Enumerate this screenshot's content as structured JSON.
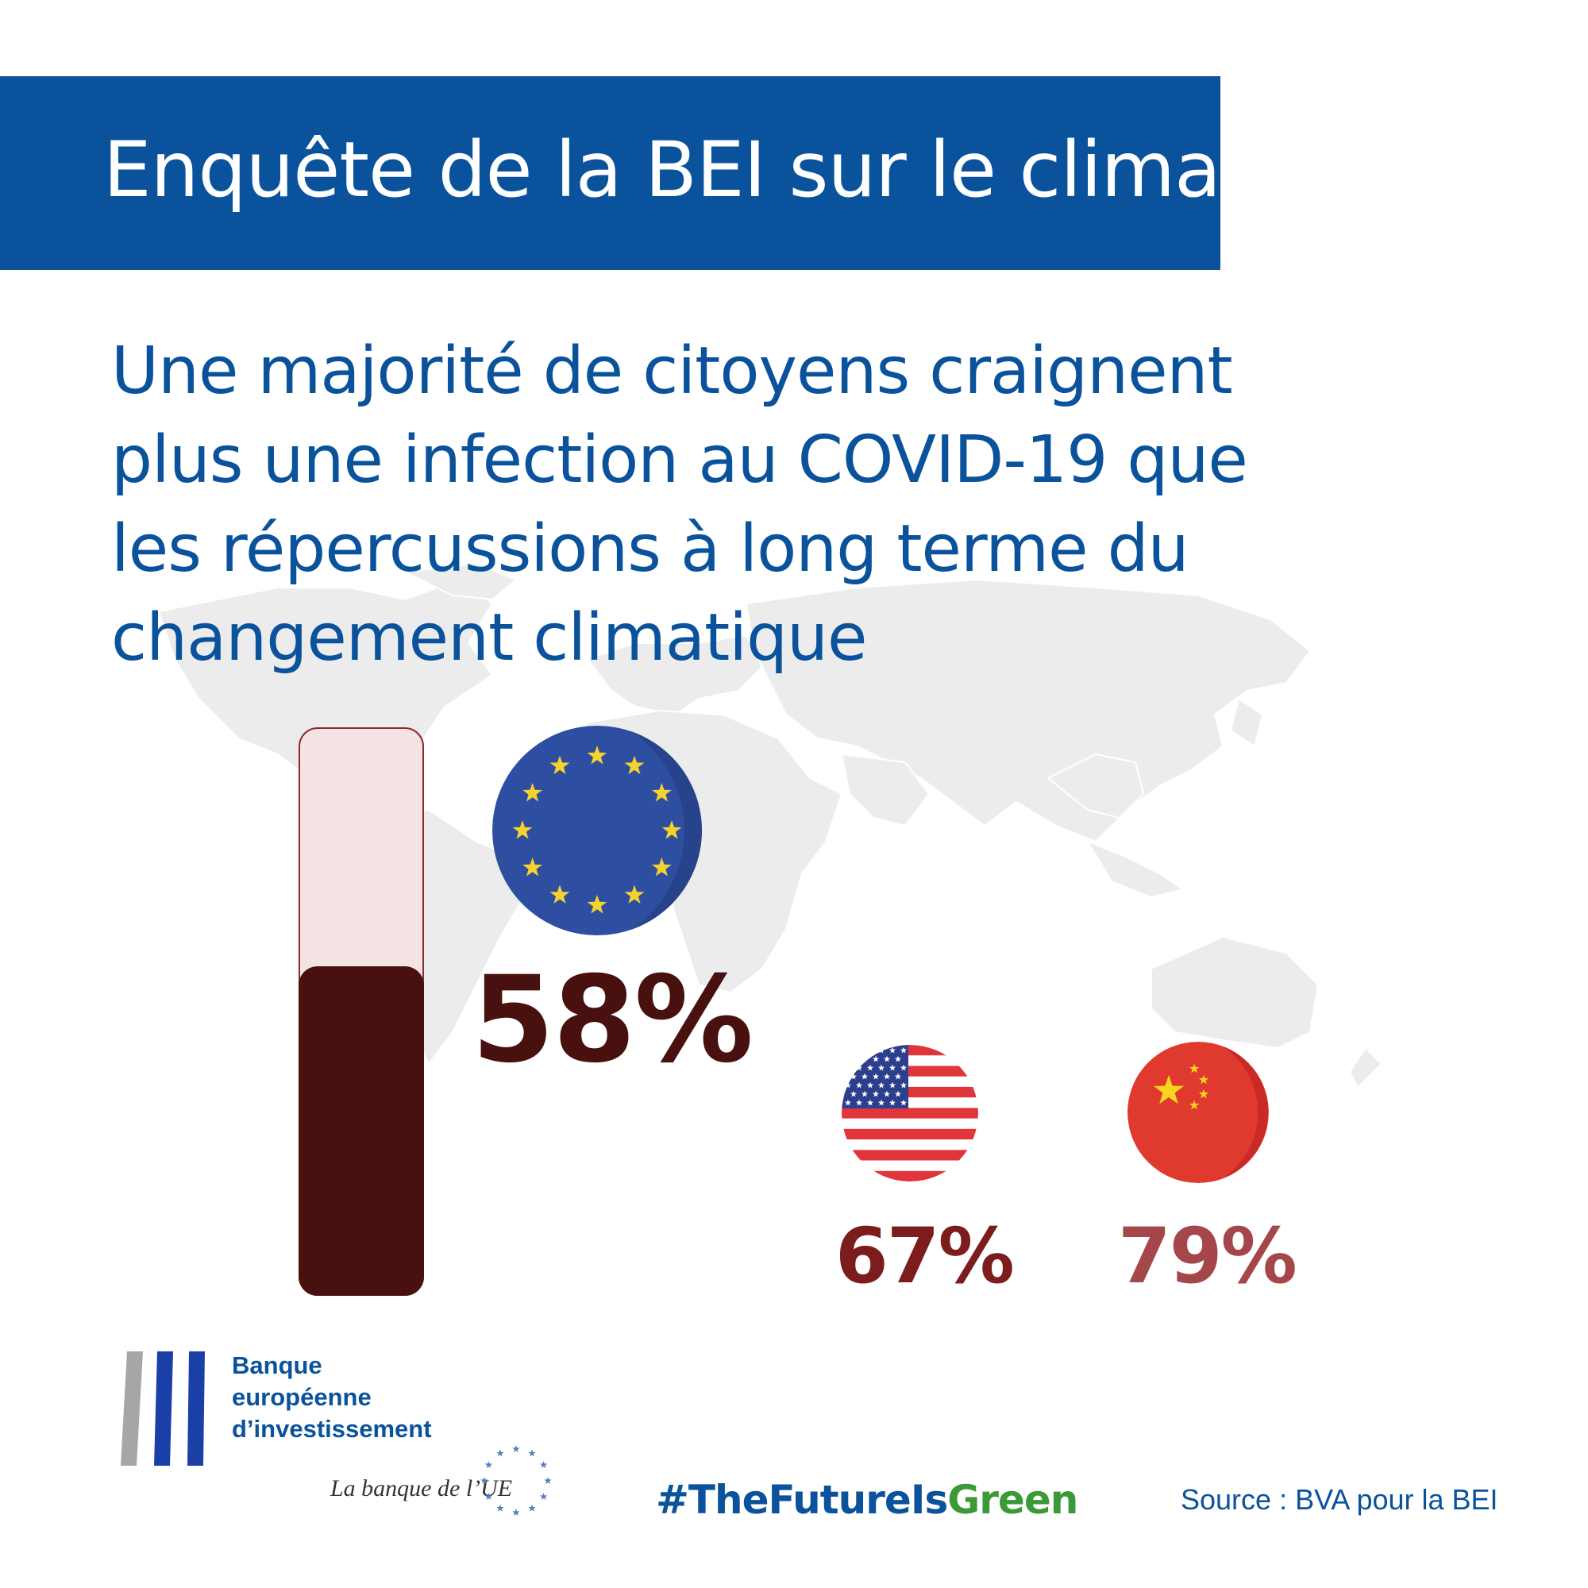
{
  "header": {
    "title": "Enquête de la BEI sur le climat"
  },
  "subtitle": {
    "lines": [
      "Une majorité de citoyens craignent",
      "plus une infection au COVID-19 que",
      "les répercussions à long terme du",
      "changement climatique"
    ]
  },
  "chart_data": {
    "type": "bar",
    "categories": [
      "EU",
      "US",
      "China"
    ],
    "values": [
      58,
      67,
      79
    ],
    "labels": [
      "58%",
      "67%",
      "79%"
    ],
    "unit": "%",
    "ylim": [
      0,
      100
    ],
    "title": "Une majorité de citoyens craignent plus une infection au COVID-19 que les répercussions à long terme du changement climatique",
    "xlabel": "",
    "ylabel": "",
    "grid": false,
    "category_icons": [
      "eu-flag-icon",
      "us-flag-icon",
      "china-flag-icon"
    ],
    "value_colors": [
      "#48100f",
      "#7c1c1c",
      "#a5474a"
    ]
  },
  "thermometer": {
    "level": 0.58,
    "track_color": "#f3e3e4",
    "fill_color": "#48100f"
  },
  "logo": {
    "lines": [
      "Banque",
      "européenne",
      "d’investissement"
    ],
    "tagline": "La banque de l’UE"
  },
  "footer": {
    "hashtag_part1": "#TheFutureIs",
    "hashtag_part2": "Green",
    "source": "Source : BVA pour la BEI"
  },
  "colors": {
    "brand_blue": "#0b529c",
    "green": "#3b9a35",
    "map_gray": "#ececec"
  }
}
